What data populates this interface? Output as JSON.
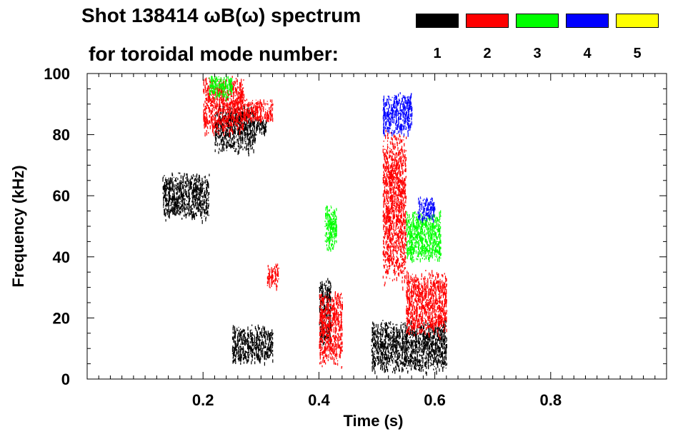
{
  "title": {
    "line1": "Shot 138414 ωB(ω) spectrum",
    "line2": "for toroidal mode number:"
  },
  "modes": [
    {
      "number": "1",
      "color": "#000000"
    },
    {
      "number": "2",
      "color": "#ff0000"
    },
    {
      "number": "3",
      "color": "#00ff00"
    },
    {
      "number": "4",
      "color": "#0000ff"
    },
    {
      "number": "5",
      "color": "#ffff00"
    }
  ],
  "chart_data": {
    "type": "heatmap",
    "title": "Shot 138414 ωB(ω) spectrum",
    "xlabel": "Time (s)",
    "ylabel": "Frequency (kHz)",
    "xlim": [
      0.0,
      1.0
    ],
    "ylim": [
      0,
      100
    ],
    "x_ticks": [
      {
        "value": 0.2,
        "label": "0.2"
      },
      {
        "value": 0.4,
        "label": "0.4"
      },
      {
        "value": 0.6,
        "label": "0.6"
      },
      {
        "value": 0.8,
        "label": "0.8"
      }
    ],
    "y_ticks": [
      {
        "value": 0,
        "label": "0"
      },
      {
        "value": 20,
        "label": "20"
      },
      {
        "value": 40,
        "label": "40"
      },
      {
        "value": 60,
        "label": "60"
      },
      {
        "value": 80,
        "label": "80"
      },
      {
        "value": 100,
        "label": "100"
      }
    ],
    "series": [
      {
        "name": "n=1",
        "mode": 1,
        "color": "#000000",
        "regions": [
          {
            "t": [
              0.13,
              0.21
            ],
            "f": [
              52,
              68
            ]
          },
          {
            "t": [
              0.22,
              0.29
            ],
            "f": [
              74,
              90
            ]
          },
          {
            "t": [
              0.29,
              0.31
            ],
            "f": [
              80,
              86
            ]
          },
          {
            "t": [
              0.25,
              0.32
            ],
            "f": [
              5,
              18
            ]
          },
          {
            "t": [
              0.4,
              0.42
            ],
            "f": [
              10,
              34
            ]
          },
          {
            "t": [
              0.49,
              0.62
            ],
            "f": [
              2,
              20
            ]
          }
        ]
      },
      {
        "name": "n=2",
        "mode": 2,
        "color": "#ff0000",
        "regions": [
          {
            "t": [
              0.2,
              0.27
            ],
            "f": [
              80,
              100
            ]
          },
          {
            "t": [
              0.27,
              0.32
            ],
            "f": [
              84,
              92
            ]
          },
          {
            "t": [
              0.31,
              0.33
            ],
            "f": [
              30,
              38
            ]
          },
          {
            "t": [
              0.4,
              0.44
            ],
            "f": [
              4,
              30
            ]
          },
          {
            "t": [
              0.51,
              0.55
            ],
            "f": [
              30,
              82
            ]
          },
          {
            "t": [
              0.55,
              0.62
            ],
            "f": [
              14,
              36
            ]
          }
        ]
      },
      {
        "name": "n=3",
        "mode": 3,
        "color": "#00ff00",
        "regions": [
          {
            "t": [
              0.21,
              0.25
            ],
            "f": [
              92,
              100
            ]
          },
          {
            "t": [
              0.41,
              0.43
            ],
            "f": [
              42,
              58
            ]
          },
          {
            "t": [
              0.55,
              0.61
            ],
            "f": [
              38,
              56
            ]
          }
        ]
      },
      {
        "name": "n=4",
        "mode": 4,
        "color": "#0000ff",
        "regions": [
          {
            "t": [
              0.51,
              0.56
            ],
            "f": [
              80,
              94
            ]
          },
          {
            "t": [
              0.57,
              0.6
            ],
            "f": [
              52,
              60
            ]
          }
        ]
      },
      {
        "name": "n=5",
        "mode": 5,
        "color": "#ffff00",
        "regions": []
      }
    ]
  }
}
